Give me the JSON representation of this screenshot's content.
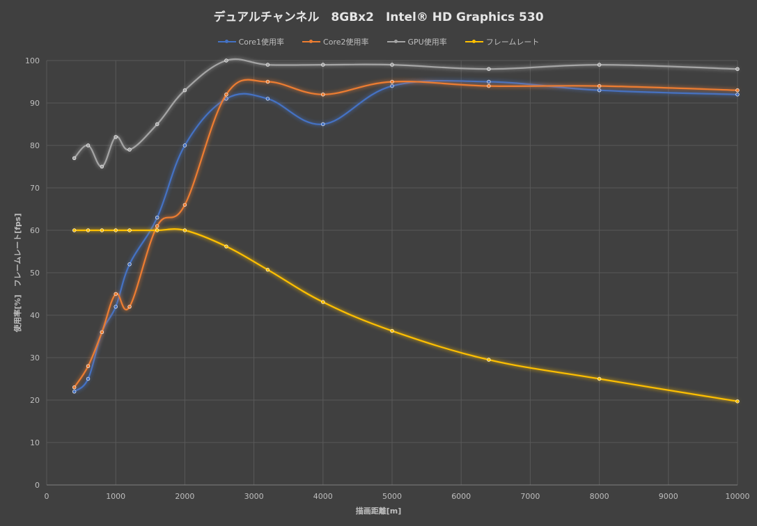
{
  "chart_data": {
    "type": "line",
    "title": "デュアルチャンネル　8GBx2　Intel® HD Graphics 530",
    "xlabel": "描画距離[m]",
    "ylabel": "使用率[%]　フレームレート[fps]",
    "xlim": [
      0,
      10000
    ],
    "ylim": [
      0,
      100
    ],
    "xticks": [
      0,
      1000,
      2000,
      3000,
      4000,
      5000,
      6000,
      7000,
      8000,
      9000,
      10000
    ],
    "yticks": [
      0,
      10,
      20,
      30,
      40,
      50,
      60,
      70,
      80,
      90,
      100
    ],
    "grid": true,
    "legend_position": "top",
    "smooth": true,
    "series": [
      {
        "name": "Core1使用率",
        "color": "#4472c4",
        "x": [
          400,
          600,
          800,
          1000,
          1200,
          1600,
          2000,
          2600,
          3200,
          4000,
          5000,
          6400,
          8000,
          10000
        ],
        "y": [
          22,
          25,
          36,
          42,
          52,
          63,
          80,
          91,
          91,
          85,
          94,
          95,
          93,
          92
        ]
      },
      {
        "name": "Core2使用率",
        "color": "#ed7d31",
        "x": [
          400,
          600,
          800,
          1000,
          1200,
          1600,
          2000,
          2600,
          3200,
          4000,
          5000,
          6400,
          8000,
          10000
        ],
        "y": [
          23,
          28,
          36,
          45,
          42,
          61,
          66,
          92,
          95,
          92,
          95,
          94,
          94,
          93
        ]
      },
      {
        "name": "GPU使用率",
        "color": "#a5a5a5",
        "x": [
          400,
          600,
          800,
          1000,
          1200,
          1600,
          2000,
          2600,
          3200,
          4000,
          5000,
          6400,
          8000,
          10000
        ],
        "y": [
          77,
          80,
          75,
          82,
          79,
          85,
          93,
          100,
          99,
          99,
          99,
          98,
          99,
          98
        ]
      },
      {
        "name": "フレームレート",
        "color": "#ffc000",
        "x": [
          400,
          600,
          800,
          1000,
          1200,
          1600,
          2000,
          2600,
          3200,
          4000,
          5000,
          6400,
          8000,
          10000
        ],
        "y": [
          60,
          60,
          60,
          60,
          60,
          60,
          60,
          56.2,
          50.7,
          43.1,
          36.3,
          29.5,
          25,
          19.7
        ]
      }
    ]
  }
}
